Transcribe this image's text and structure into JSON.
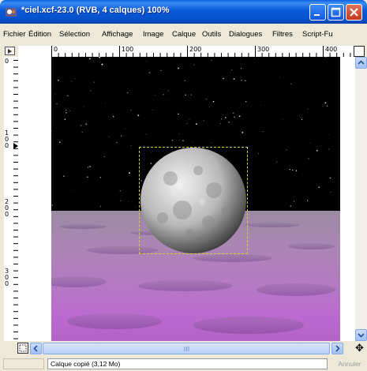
{
  "window": {
    "title": "*ciel.xcf-23.0 (RVB, 4 calques) 100%",
    "colors": {
      "titlebar": "#0a59d8",
      "close": "#c4381c"
    }
  },
  "menu": {
    "items": [
      "Fichier",
      "Édition",
      "Sélection",
      "Affichage",
      "Image",
      "Calque",
      "Outils",
      "Dialogues",
      "Filtres",
      "Script-Fu"
    ]
  },
  "ruler": {
    "h_labels": [
      "0",
      "100",
      "200",
      "300",
      "400"
    ],
    "v_labels": [
      "0",
      "1\n0\n0",
      "2\n0\n0",
      "3\n0\n0"
    ]
  },
  "canvas": {
    "sky_color": "#000000",
    "water_color": "#b47ac3"
  },
  "statusbar": {
    "message": "Calque copié (3,12 Mo)",
    "cancel_label": "Annuler"
  }
}
